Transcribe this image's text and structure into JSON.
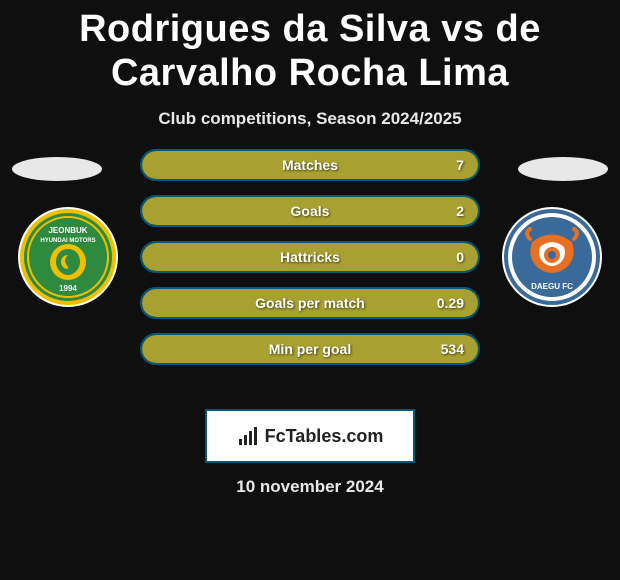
{
  "title": "Rodrigues da Silva vs de Carvalho Rocha Lima",
  "subtitle": "Club competitions, Season 2024/2025",
  "date": "10 november 2024",
  "logo_text": "FcTables.com",
  "colors": {
    "background": "#0f0f0f",
    "bar_border": "#005a7a",
    "bar_fill": "#a8a030",
    "text": "#ffffff"
  },
  "team_left": {
    "name": "Jeonbuk Hyundai Motors",
    "badge_bg": "#ffffff",
    "primary": "#2d8a3e",
    "secondary": "#f0c000",
    "year": "1994"
  },
  "team_right": {
    "name": "Daegu FC",
    "badge_bg": "#ffffff",
    "primary": "#3a6a9a",
    "secondary": "#e87020"
  },
  "stats": [
    {
      "label": "Matches",
      "value": "7",
      "fill_pct": 100
    },
    {
      "label": "Goals",
      "value": "2",
      "fill_pct": 100
    },
    {
      "label": "Hattricks",
      "value": "0",
      "fill_pct": 100
    },
    {
      "label": "Goals per match",
      "value": "0.29",
      "fill_pct": 100
    },
    {
      "label": "Min per goal",
      "value": "534",
      "fill_pct": 100
    }
  ]
}
